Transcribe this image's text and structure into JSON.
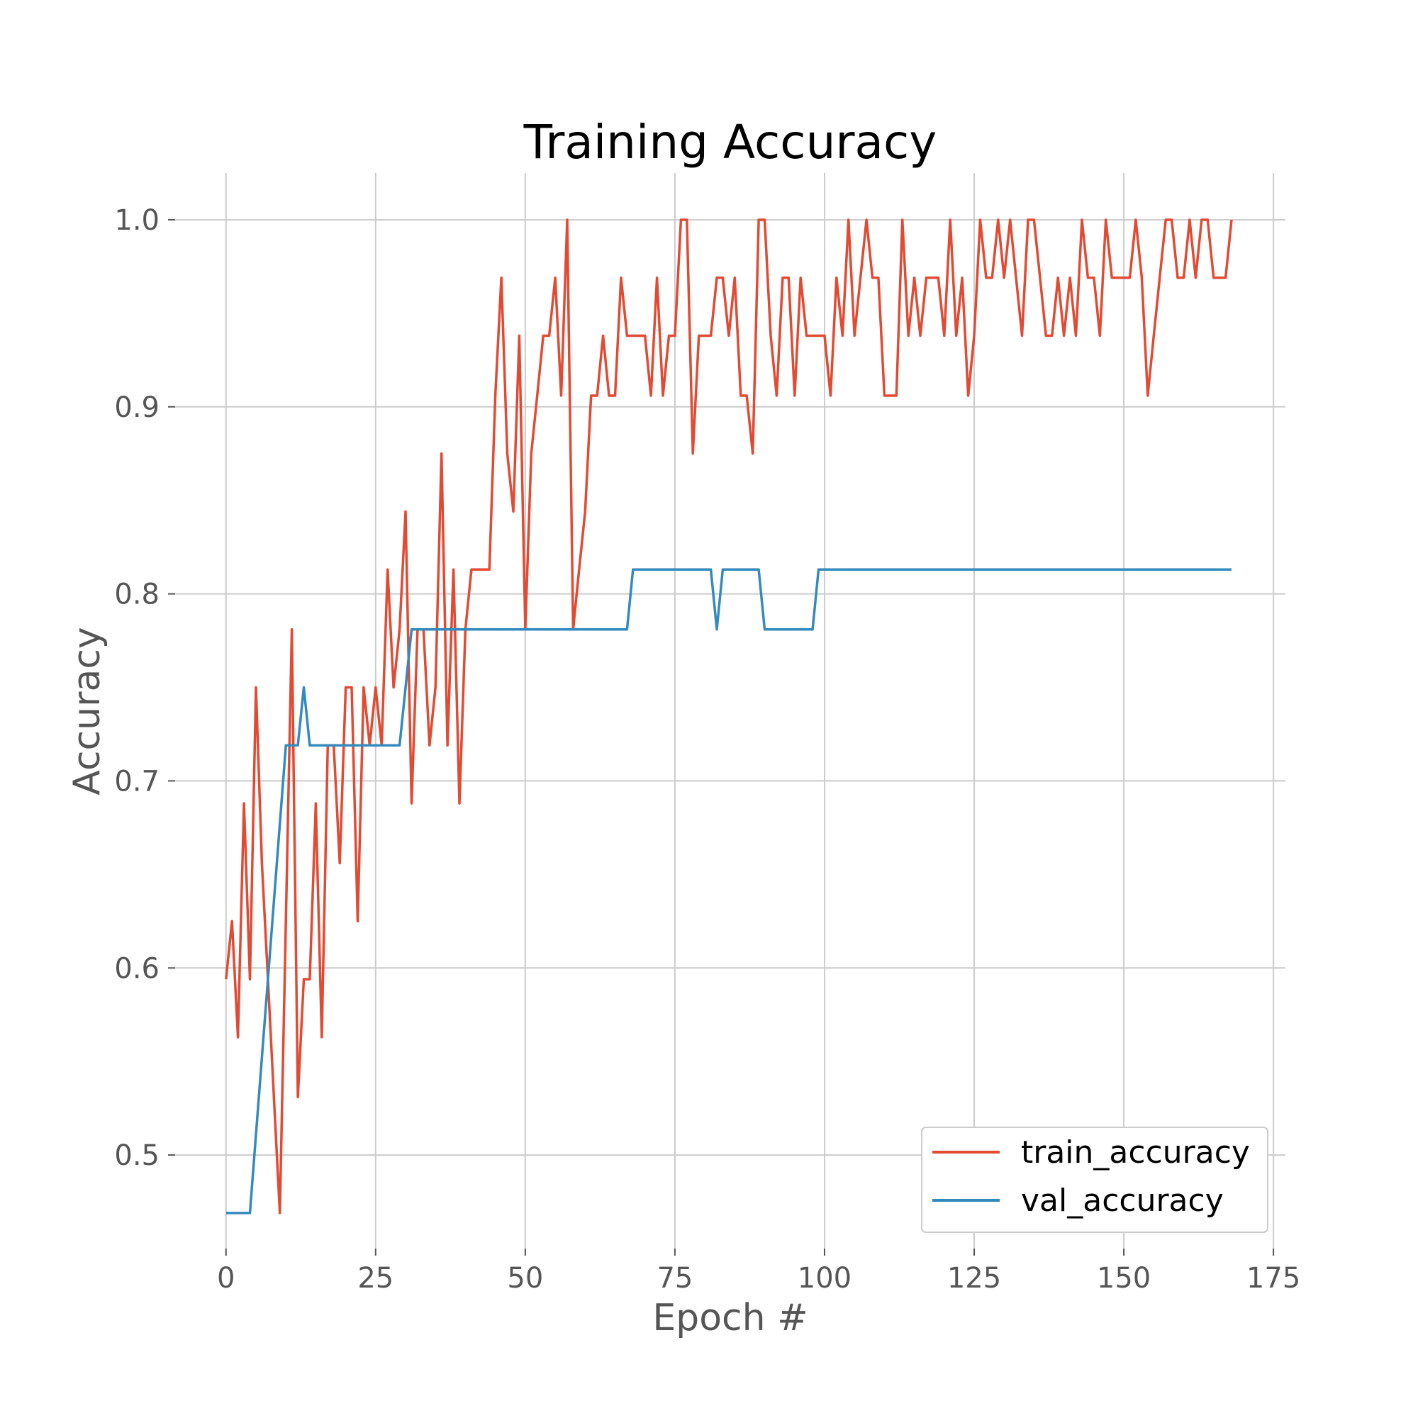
{
  "chart_data": {
    "type": "line",
    "title": "Training Accuracy",
    "xlabel": "Epoch #",
    "ylabel": "Accuracy",
    "xlim": [
      -8.5,
      177
    ],
    "ylim": [
      0.45,
      1.025
    ],
    "xticks": [
      0,
      25,
      50,
      75,
      100,
      125,
      150,
      175
    ],
    "xtick_labels": [
      "0",
      "25",
      "50",
      "75",
      "100",
      "125",
      "150",
      "175"
    ],
    "yticks": [
      0.5,
      0.6,
      0.7,
      0.8,
      0.9,
      1.0
    ],
    "ytick_labels": [
      "0.5",
      "0.6",
      "0.7",
      "0.8",
      "0.9",
      "1.0"
    ],
    "grid": true,
    "legend_position": "lower-right",
    "series": [
      {
        "name": "train_accuracy",
        "color": "#e24a33",
        "x": [
          0,
          1,
          2,
          3,
          4,
          5,
          6,
          7,
          8,
          9,
          10,
          11,
          12,
          13,
          14,
          15,
          16,
          17,
          18,
          19,
          20,
          21,
          22,
          23,
          24,
          25,
          26,
          27,
          28,
          29,
          30,
          31,
          32,
          33,
          34,
          35,
          36,
          37,
          38,
          39,
          40,
          41,
          42,
          43,
          44,
          45,
          46,
          47,
          48,
          49,
          50,
          51,
          52,
          53,
          54,
          55,
          56,
          57,
          58,
          59,
          60,
          61,
          62,
          63,
          64,
          65,
          66,
          67,
          68,
          69,
          70,
          71,
          72,
          73,
          74,
          75,
          76,
          77,
          78,
          79,
          80,
          81,
          82,
          83,
          84,
          85,
          86,
          87,
          88,
          89,
          90,
          91,
          92,
          93,
          94,
          95,
          96,
          97,
          98,
          99,
          100,
          101,
          102,
          103,
          104,
          105,
          106,
          107,
          108,
          109,
          110,
          111,
          112,
          113,
          114,
          115,
          116,
          117,
          118,
          119,
          120,
          121,
          122,
          123,
          124,
          125,
          126,
          127,
          128,
          129,
          130,
          131,
          132,
          133,
          134,
          135,
          136,
          137,
          138,
          139,
          140,
          141,
          142,
          143,
          144,
          145,
          146,
          147,
          148,
          149,
          150,
          151,
          152,
          153,
          154,
          155,
          156,
          157,
          158,
          159,
          160,
          161,
          162,
          163,
          164,
          165,
          166,
          167,
          168
        ],
        "values": [
          0.594,
          0.625,
          0.563,
          0.688,
          0.594,
          0.75,
          0.656,
          0.594,
          0.531,
          0.469,
          0.625,
          0.781,
          0.531,
          0.594,
          0.594,
          0.688,
          0.563,
          0.719,
          0.719,
          0.656,
          0.75,
          0.75,
          0.625,
          0.75,
          0.719,
          0.75,
          0.719,
          0.813,
          0.75,
          0.781,
          0.844,
          0.688,
          0.781,
          0.781,
          0.719,
          0.75,
          0.875,
          0.719,
          0.813,
          0.688,
          0.781,
          0.813,
          0.813,
          0.813,
          0.813,
          0.906,
          0.969,
          0.875,
          0.844,
          0.938,
          0.781,
          0.875,
          0.906,
          0.938,
          0.938,
          0.969,
          0.906,
          1.0,
          0.781,
          0.813,
          0.844,
          0.906,
          0.906,
          0.938,
          0.906,
          0.906,
          0.969,
          0.938,
          0.938,
          0.938,
          0.938,
          0.906,
          0.969,
          0.906,
          0.938,
          0.938,
          1.0,
          1.0,
          0.875,
          0.938,
          0.938,
          0.938,
          0.969,
          0.969,
          0.938,
          0.969,
          0.906,
          0.906,
          0.875,
          1.0,
          1.0,
          0.938,
          0.906,
          0.969,
          0.969,
          0.906,
          0.969,
          0.938,
          0.938,
          0.938,
          0.938,
          0.906,
          0.969,
          0.938,
          1.0,
          0.938,
          0.969,
          1.0,
          0.969,
          0.969,
          0.906,
          0.906,
          0.906,
          1.0,
          0.938,
          0.969,
          0.938,
          0.969,
          0.969,
          0.969,
          0.938,
          1.0,
          0.938,
          0.969,
          0.906,
          0.938,
          1.0,
          0.969,
          0.969,
          1.0,
          0.969,
          1.0,
          0.969,
          0.938,
          1.0,
          1.0,
          0.969,
          0.938,
          0.938,
          0.969,
          0.938,
          0.969,
          0.938,
          1.0,
          0.969,
          0.969,
          0.938,
          1.0,
          0.969,
          0.969,
          0.969,
          0.969,
          1.0,
          0.969,
          0.906,
          0.938,
          0.969,
          1.0,
          1.0,
          0.969,
          0.969,
          1.0,
          0.969,
          1.0,
          1.0,
          0.969,
          0.969,
          0.969,
          1.0
        ]
      },
      {
        "name": "val_accuracy",
        "color": "#348abd",
        "x": [
          0,
          4,
          7,
          10,
          11,
          12,
          13,
          14,
          29,
          31,
          67,
          68,
          81,
          82,
          83,
          89,
          90,
          98,
          99,
          168
        ],
        "values": [
          0.469,
          0.469,
          0.594,
          0.719,
          0.719,
          0.719,
          0.75,
          0.719,
          0.719,
          0.781,
          0.781,
          0.813,
          0.813,
          0.781,
          0.813,
          0.813,
          0.781,
          0.781,
          0.813,
          0.813
        ]
      }
    ]
  }
}
